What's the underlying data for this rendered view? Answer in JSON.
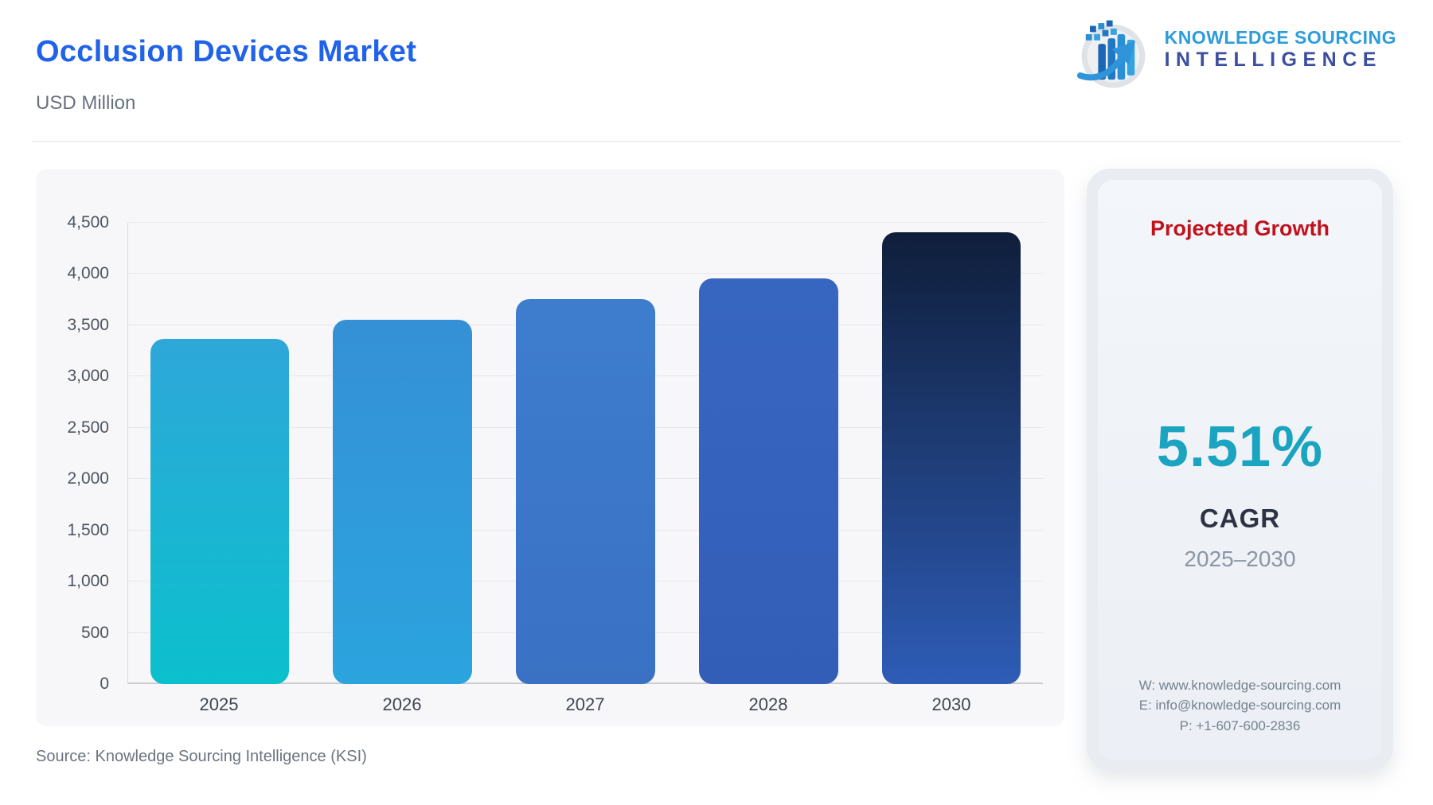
{
  "header": {
    "title": "Occlusion Devices Market",
    "subtitle": "USD Million",
    "logo": {
      "line1": "KNOWLEDGE SOURCING",
      "line2": "INTELLIGENCE",
      "line1_color": "#2D9CDB",
      "line2_color": "#3D4EA0"
    }
  },
  "chart_data": {
    "type": "bar",
    "title": "Occlusion Devices Market",
    "ylabel": "USD Million",
    "xlabel": "",
    "categories": [
      "2025",
      "2026",
      "2027",
      "2028",
      "2030"
    ],
    "values": [
      3370,
      3556,
      3752,
      3958,
      4407
    ],
    "ylim": [
      0,
      4500
    ],
    "ytick_step": 500,
    "grid": "on",
    "legend": "none",
    "bar_colors": [
      {
        "top": "#2EA7D9",
        "bottom": "#0BC0CD"
      },
      {
        "top": "#3590D6",
        "bottom": "#2BA4DE"
      },
      {
        "top": "#3E7DCE",
        "bottom": "#3A71C4"
      },
      {
        "top": "#3766C0",
        "bottom": "#335EB8"
      },
      {
        "top": "#0F1E3A",
        "bottom": "#2E5CB6"
      }
    ]
  },
  "side_panel": {
    "heading": "Projected Growth",
    "heading_color": "#C1121C",
    "value": "5.51%",
    "value_color": "#1BA4C0",
    "label": "CAGR",
    "period": "2025–2030",
    "contact": {
      "website": "W: www.knowledge-sourcing.com",
      "email": "E: info@knowledge-sourcing.com",
      "phone": "P: +1-607-600-2836"
    }
  },
  "footer": {
    "source": "Source: Knowledge Sourcing Intelligence (KSI)"
  }
}
